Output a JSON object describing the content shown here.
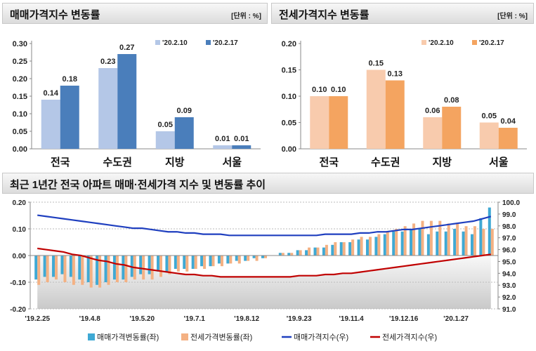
{
  "charts": [
    {
      "title": "매매가격지수 변동률",
      "unit": "[단위 : %]",
      "colors": [
        "#b4c7e7",
        "#4a7ebb"
      ],
      "chart_data": {
        "type": "bar",
        "categories": [
          "전국",
          "수도권",
          "지방",
          "서울"
        ],
        "series": [
          {
            "name": "'20.2.10",
            "values": [
              0.14,
              0.23,
              0.05,
              0.01
            ]
          },
          {
            "name": "'20.2.17",
            "values": [
              0.18,
              0.27,
              0.09,
              0.01
            ]
          }
        ],
        "ylim": [
          0,
          0.3
        ],
        "yticks": [
          "0.00",
          "0.05",
          "0.10",
          "0.15",
          "0.20",
          "0.25",
          "0.30"
        ],
        "labels": [
          [
            "0.14",
            "0.23",
            "0.05",
            "0.01"
          ],
          [
            "0.18",
            "0.27",
            "0.09",
            "0.01"
          ]
        ]
      }
    },
    {
      "title": "전세가격지수 변동률",
      "unit": "[단위 : %]",
      "colors": [
        "#f8cbad",
        "#f4a460"
      ],
      "chart_data": {
        "type": "bar",
        "categories": [
          "전국",
          "수도권",
          "지방",
          "서울"
        ],
        "series": [
          {
            "name": "'20.2.10",
            "values": [
              0.1,
              0.15,
              0.06,
              0.05
            ]
          },
          {
            "name": "'20.2.17",
            "values": [
              0.1,
              0.13,
              0.08,
              0.04
            ]
          }
        ],
        "ylim": [
          0,
          0.2
        ],
        "yticks": [
          "0.00",
          "0.05",
          "0.10",
          "0.15",
          "0.20"
        ],
        "labels": [
          [
            "0.10",
            "0.15",
            "0.06",
            "0.05"
          ],
          [
            "0.10",
            "0.13",
            "0.08",
            "0.04"
          ]
        ]
      }
    }
  ],
  "bottom": {
    "title": "최근 1년간 전국 아파트 매매·전세가격 지수 및 변동률 추이",
    "colors": {
      "sale_bar": "#3fa9d4",
      "jeonse_bar": "#f4b183",
      "sale_line": "#1f3fbf",
      "jeonse_line": "#c00000"
    },
    "chart_data": {
      "type": "bar+line",
      "x_labels": [
        "'19.2.25",
        "'19.4.8",
        "'19.5.20",
        "'19.7.1",
        "'19.8.12",
        "'19.9.23",
        "'19.11.4",
        "'19.12.16",
        "'20.1.27"
      ],
      "ylim_left": [
        -0.2,
        0.2
      ],
      "yticks_left": [
        "0.20",
        "0.10",
        "0.00",
        "-0.10",
        "-0.20"
      ],
      "ylim_right": [
        91.0,
        100.0
      ],
      "yticks_right": [
        "100.0",
        "99.0",
        "98.0",
        "97.0",
        "96.0",
        "95.0",
        "94.0",
        "93.0",
        "92.0",
        "91.0"
      ],
      "series": [
        {
          "name": "매매가격변동률(좌)",
          "axis": "left",
          "values": [
            -0.09,
            -0.08,
            -0.08,
            -0.07,
            -0.08,
            -0.09,
            -0.1,
            -0.11,
            -0.1,
            -0.09,
            -0.09,
            -0.08,
            -0.07,
            -0.07,
            -0.06,
            -0.06,
            -0.05,
            -0.05,
            -0.05,
            -0.04,
            -0.04,
            -0.03,
            -0.03,
            -0.02,
            -0.02,
            -0.01,
            -0.01,
            0.0,
            0.01,
            0.01,
            0.02,
            0.02,
            0.03,
            0.03,
            0.04,
            0.05,
            0.05,
            0.06,
            0.06,
            0.07,
            0.08,
            0.09,
            0.09,
            0.1,
            0.1,
            0.08,
            0.09,
            0.09,
            0.1,
            0.09,
            0.08,
            0.14,
            0.18
          ]
        },
        {
          "name": "전세가격변동률(좌)",
          "axis": "left",
          "values": [
            -0.11,
            -0.1,
            -0.09,
            -0.1,
            -0.11,
            -0.11,
            -0.12,
            -0.12,
            -0.11,
            -0.1,
            -0.1,
            -0.09,
            -0.09,
            -0.09,
            -0.08,
            -0.07,
            -0.06,
            -0.06,
            -0.05,
            -0.05,
            -0.04,
            -0.04,
            -0.03,
            -0.03,
            -0.02,
            -0.02,
            -0.01,
            0.0,
            0.01,
            0.01,
            0.02,
            0.03,
            0.03,
            0.04,
            0.05,
            0.05,
            0.06,
            0.07,
            0.07,
            0.08,
            0.09,
            0.1,
            0.11,
            0.12,
            0.13,
            0.13,
            0.13,
            0.12,
            0.12,
            0.11,
            0.11,
            0.1,
            0.1
          ]
        },
        {
          "name": "매매가격지수(우)",
          "axis": "right",
          "values": [
            98.9,
            98.8,
            98.7,
            98.6,
            98.5,
            98.4,
            98.3,
            98.2,
            98.1,
            98.0,
            97.9,
            97.8,
            97.8,
            97.7,
            97.6,
            97.5,
            97.5,
            97.4,
            97.4,
            97.3,
            97.3,
            97.3,
            97.2,
            97.2,
            97.2,
            97.2,
            97.2,
            97.2,
            97.2,
            97.2,
            97.2,
            97.2,
            97.2,
            97.3,
            97.3,
            97.3,
            97.3,
            97.4,
            97.4,
            97.5,
            97.5,
            97.6,
            97.7,
            97.7,
            97.8,
            97.9,
            98.0,
            98.1,
            98.2,
            98.3,
            98.4,
            98.6,
            98.8
          ]
        },
        {
          "name": "전세가격지수(우)",
          "axis": "right",
          "values": [
            96.1,
            96.0,
            95.9,
            95.8,
            95.6,
            95.5,
            95.3,
            95.1,
            95.0,
            94.8,
            94.7,
            94.5,
            94.4,
            94.3,
            94.2,
            94.1,
            94.0,
            93.9,
            93.9,
            93.8,
            93.8,
            93.7,
            93.7,
            93.7,
            93.7,
            93.7,
            93.7,
            93.7,
            93.7,
            93.7,
            93.8,
            93.8,
            93.8,
            93.9,
            93.9,
            94.0,
            94.0,
            94.1,
            94.2,
            94.3,
            94.4,
            94.5,
            94.6,
            94.7,
            94.8,
            94.9,
            95.0,
            95.1,
            95.2,
            95.3,
            95.4,
            95.5,
            95.6
          ]
        }
      ]
    }
  }
}
